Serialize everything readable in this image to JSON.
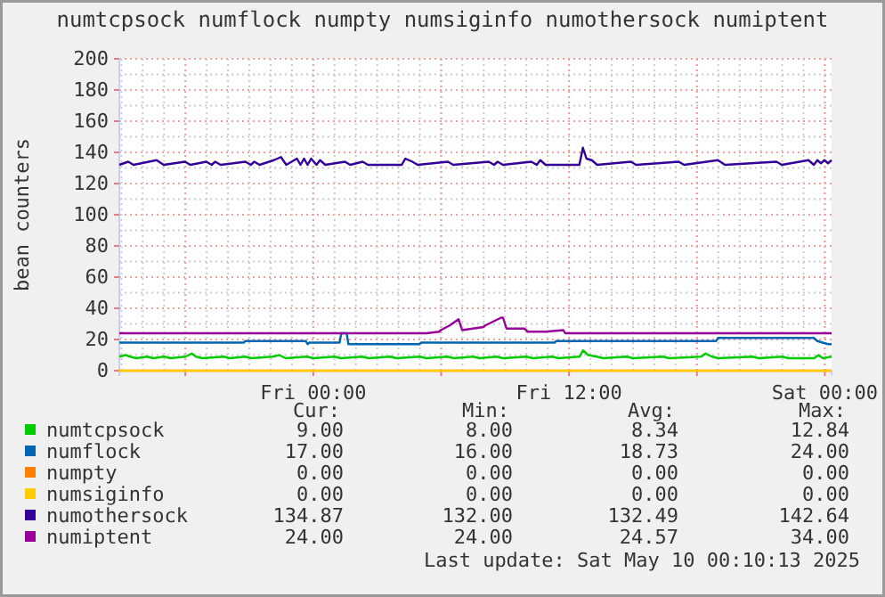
{
  "chart_data": {
    "type": "line",
    "title": "numtcpsock numflock numpty numsiginfo numothersock numiptent",
    "ylabel": "bean counters",
    "xlim": [
      "2025-05-08T14:54",
      "2025-05-10T00:19"
    ],
    "xticks": [
      {
        "value": "2025-05-08T18:00",
        "label": null
      },
      {
        "value": "2025-05-09T00:00",
        "label": "Fri 00:00"
      },
      {
        "value": "2025-05-09T06:00",
        "label": null
      },
      {
        "value": "2025-05-09T12:00",
        "label": "Fri 12:00"
      },
      {
        "value": "2025-05-09T18:00",
        "label": null
      },
      {
        "value": "2025-05-10T00:00",
        "label": "Sat 00:00"
      }
    ],
    "ylim": [
      0,
      200
    ],
    "yticks": [
      0,
      20,
      40,
      60,
      80,
      100,
      120,
      140,
      160,
      180,
      200
    ],
    "grid": true,
    "legend": "bottom",
    "series": [
      {
        "name": "numtcpsock",
        "color": "#00cc00",
        "x": [
          "2025-05-08T14:54",
          "2025-05-08T15:12",
          "2025-05-08T15:24",
          "2025-05-08T15:42",
          "2025-05-08T16:12",
          "2025-05-08T16:30",
          "2025-05-08T17:00",
          "2025-05-08T17:18",
          "2025-05-08T18:00",
          "2025-05-08T18:18",
          "2025-05-08T18:30",
          "2025-05-08T18:48",
          "2025-05-08T19:48",
          "2025-05-08T20:06",
          "2025-05-08T20:48",
          "2025-05-08T21:06",
          "2025-05-08T22:06",
          "2025-05-08T22:24",
          "2025-05-08T22:42",
          "2025-05-08T23:42",
          "2025-05-09T00:00",
          "2025-05-09T01:00",
          "2025-05-09T01:18",
          "2025-05-09T02:18",
          "2025-05-09T02:36",
          "2025-05-09T03:36",
          "2025-05-09T03:54",
          "2025-05-09T05:00",
          "2025-05-09T05:18",
          "2025-05-09T06:18",
          "2025-05-09T06:36",
          "2025-05-09T07:30",
          "2025-05-09T07:48",
          "2025-05-09T08:36",
          "2025-05-09T08:54",
          "2025-05-09T10:00",
          "2025-05-09T10:18",
          "2025-05-09T11:12",
          "2025-05-09T11:30",
          "2025-05-09T12:30",
          "2025-05-09T12:39",
          "2025-05-09T12:54",
          "2025-05-09T13:18",
          "2025-05-09T13:36",
          "2025-05-09T14:42",
          "2025-05-09T15:00",
          "2025-05-09T16:24",
          "2025-05-09T16:42",
          "2025-05-09T18:12",
          "2025-05-09T18:24",
          "2025-05-09T18:42",
          "2025-05-09T19:00",
          "2025-05-09T20:36",
          "2025-05-09T20:54",
          "2025-05-09T22:00",
          "2025-05-09T22:18",
          "2025-05-09T23:30",
          "2025-05-09T23:42",
          "2025-05-09T23:54",
          "2025-05-10T00:19"
        ],
        "values": [
          9,
          10,
          9,
          8,
          9,
          8,
          9,
          8,
          9,
          11,
          9,
          8,
          9,
          8,
          9,
          8,
          9,
          10,
          8,
          9,
          8,
          9,
          8,
          9,
          8,
          9,
          8,
          9,
          8,
          9,
          8,
          9,
          8,
          9,
          8,
          9,
          8,
          9,
          8,
          9,
          13,
          10,
          9,
          8,
          9,
          8,
          9,
          8,
          9,
          11,
          9,
          8,
          9,
          8,
          9,
          8,
          8,
          10,
          8,
          9
        ]
      },
      {
        "name": "numflock",
        "color": "#0066b3",
        "x": [
          "2025-05-08T14:54",
          "2025-05-08T20:44",
          "2025-05-08T20:49",
          "2025-05-08T23:39",
          "2025-05-08T23:44",
          "2025-05-08T23:49",
          "2025-05-09T01:14",
          "2025-05-09T01:19",
          "2025-05-09T01:34",
          "2025-05-09T01:39",
          "2025-05-09T04:59",
          "2025-05-09T05:04",
          "2025-05-09T11:19",
          "2025-05-09T11:24",
          "2025-05-09T18:54",
          "2025-05-09T18:59",
          "2025-05-09T23:29",
          "2025-05-09T23:39",
          "2025-05-10T00:09",
          "2025-05-10T00:19"
        ],
        "values": [
          18,
          18,
          19,
          19,
          17,
          18,
          18,
          24,
          24,
          17,
          17,
          18,
          18,
          19,
          19,
          21,
          21,
          19,
          17,
          17
        ]
      },
      {
        "name": "numpty",
        "color": "#ff8000",
        "x": [
          "2025-05-08T14:54",
          "2025-05-10T00:19"
        ],
        "values": [
          0,
          0
        ]
      },
      {
        "name": "numsiginfo",
        "color": "#ffcc00",
        "x": [
          "2025-05-08T14:54",
          "2025-05-10T00:19"
        ],
        "values": [
          0,
          0
        ]
      },
      {
        "name": "numothersock",
        "color": "#330099",
        "x": [
          "2025-05-08T14:54",
          "2025-05-08T15:19",
          "2025-05-08T15:34",
          "2025-05-08T16:39",
          "2025-05-08T16:59",
          "2025-05-08T17:59",
          "2025-05-08T18:14",
          "2025-05-08T18:59",
          "2025-05-08T19:14",
          "2025-05-08T19:24",
          "2025-05-08T19:39",
          "2025-05-08T20:49",
          "2025-05-08T21:04",
          "2025-05-08T21:14",
          "2025-05-08T21:29",
          "2025-05-08T22:09",
          "2025-05-08T22:29",
          "2025-05-08T22:44",
          "2025-05-08T23:14",
          "2025-05-08T23:24",
          "2025-05-08T23:34",
          "2025-05-08T23:44",
          "2025-05-08T23:54",
          "2025-05-09T00:09",
          "2025-05-09T00:19",
          "2025-05-09T00:34",
          "2025-05-09T01:29",
          "2025-05-09T01:44",
          "2025-05-09T02:19",
          "2025-05-09T02:34",
          "2025-05-09T04:09",
          "2025-05-09T04:19",
          "2025-05-09T04:39",
          "2025-05-09T04:54",
          "2025-05-09T06:19",
          "2025-05-09T06:34",
          "2025-05-09T08:14",
          "2025-05-09T08:29",
          "2025-05-09T08:39",
          "2025-05-09T08:54",
          "2025-05-09T10:14",
          "2025-05-09T10:29",
          "2025-05-09T10:39",
          "2025-05-09T10:54",
          "2025-05-09T12:29",
          "2025-05-09T12:39",
          "2025-05-09T12:49",
          "2025-05-09T13:04",
          "2025-05-09T13:19",
          "2025-05-09T14:54",
          "2025-05-09T15:09",
          "2025-05-09T17:09",
          "2025-05-09T17:24",
          "2025-05-09T18:59",
          "2025-05-09T19:19",
          "2025-05-09T21:44",
          "2025-05-09T21:59",
          "2025-05-09T23:14",
          "2025-05-09T23:29",
          "2025-05-09T23:39",
          "2025-05-09T23:49",
          "2025-05-09T23:59",
          "2025-05-10T00:09",
          "2025-05-10T00:19"
        ],
        "values": [
          132,
          134,
          132,
          135,
          132,
          134,
          132,
          134,
          132,
          134,
          132,
          134,
          132,
          134,
          132,
          135,
          137,
          132,
          136,
          132,
          136,
          132,
          136,
          132,
          135,
          132,
          134,
          132,
          134,
          132,
          132,
          136,
          134,
          132,
          134,
          132,
          134,
          132,
          134,
          132,
          134,
          132,
          135,
          132,
          132,
          143,
          136,
          135,
          132,
          134,
          132,
          134,
          132,
          135,
          132,
          134,
          132,
          135,
          132,
          135,
          133,
          135,
          133,
          135
        ]
      },
      {
        "name": "numiptent",
        "color": "#990099",
        "x": [
          "2025-05-08T14:54",
          "2025-05-09T05:19",
          "2025-05-09T05:54",
          "2025-05-09T05:59",
          "2025-05-09T06:24",
          "2025-05-09T06:49",
          "2025-05-09T06:59",
          "2025-05-09T07:59",
          "2025-05-09T08:04",
          "2025-05-09T08:49",
          "2025-05-09T08:54",
          "2025-05-09T09:04",
          "2025-05-09T09:54",
          "2025-05-09T10:04",
          "2025-05-09T10:54",
          "2025-05-09T11:44",
          "2025-05-09T11:49",
          "2025-05-10T00:19"
        ],
        "values": [
          24,
          24,
          25,
          26,
          29,
          33,
          26,
          28,
          29,
          34,
          34,
          27,
          27,
          25,
          25,
          26,
          24,
          24
        ]
      }
    ],
    "annotations": [
      "Cur:",
      "Min:",
      "Avg:",
      "Max:",
      "9.00",
      "8.00",
      "8.34",
      "12.84",
      "17.00",
      "16.00",
      "18.73",
      "24.00",
      "0.00",
      "0.00",
      "0.00",
      "0.00",
      "0.00",
      "0.00",
      "0.00",
      "0.00",
      "134.87",
      "132.00",
      "132.49",
      "142.64",
      "24.00",
      "24.00",
      "24.57",
      "34.00",
      "Last update: Sat May 10 00:10:13 2025"
    ]
  }
}
